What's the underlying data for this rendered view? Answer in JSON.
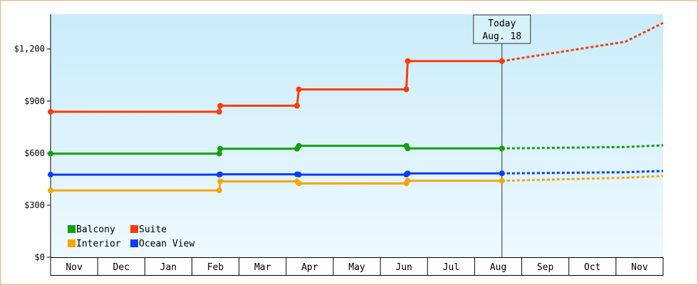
{
  "chart_data": {
    "type": "line",
    "title": "",
    "xlabel": "",
    "ylabel": "",
    "ylim": [
      0,
      1400
    ],
    "y_ticks": [
      "$0",
      "$300",
      "$600",
      "$900",
      "$1,200"
    ],
    "y_tick_values": [
      0,
      300,
      600,
      900,
      1200
    ],
    "months": [
      "Nov",
      "Dec",
      "Jan",
      "Feb",
      "Mar",
      "Apr",
      "May",
      "Jun",
      "Jul",
      "Aug",
      "Sep",
      "Oct",
      "Nov"
    ],
    "x_domain": [
      0,
      13
    ],
    "today_marker": {
      "line1": "Today",
      "line2": "Aug. 18",
      "x": 9.58
    },
    "grid": false,
    "background": "light blue gradient",
    "legend_position": "bottom-left",
    "series": [
      {
        "name": "Balcony",
        "color": "#13a10e",
        "history": [
          [
            0.0,
            597
          ],
          [
            3.58,
            597
          ],
          [
            3.6,
            625
          ],
          [
            5.23,
            625
          ],
          [
            5.27,
            642
          ],
          [
            7.55,
            642
          ],
          [
            7.58,
            627
          ],
          [
            9.58,
            627
          ]
        ],
        "markers": [
          [
            0.0,
            597
          ],
          [
            3.58,
            597
          ],
          [
            3.6,
            625
          ],
          [
            5.23,
            625
          ],
          [
            5.27,
            642
          ],
          [
            7.55,
            642
          ],
          [
            7.58,
            627
          ],
          [
            9.58,
            627
          ]
        ],
        "forecast": [
          [
            9.58,
            627
          ],
          [
            12.2,
            635
          ],
          [
            13.0,
            645
          ]
        ]
      },
      {
        "name": "Suite",
        "color": "#ff3a0a",
        "history": [
          [
            0.0,
            838
          ],
          [
            3.58,
            838
          ],
          [
            3.6,
            873
          ],
          [
            5.23,
            873
          ],
          [
            5.27,
            967
          ],
          [
            7.55,
            967
          ],
          [
            7.58,
            1130
          ],
          [
            9.58,
            1130
          ]
        ],
        "markers": [
          [
            0.0,
            838
          ],
          [
            3.58,
            838
          ],
          [
            3.6,
            873
          ],
          [
            5.23,
            873
          ],
          [
            5.27,
            967
          ],
          [
            7.55,
            967
          ],
          [
            7.58,
            1130
          ],
          [
            9.58,
            1130
          ]
        ],
        "forecast": [
          [
            9.58,
            1130
          ],
          [
            12.2,
            1242
          ],
          [
            13.0,
            1350
          ]
        ]
      },
      {
        "name": "Interior",
        "color": "#f5a50a",
        "history": [
          [
            0.0,
            385
          ],
          [
            3.58,
            385
          ],
          [
            3.6,
            437
          ],
          [
            5.23,
            437
          ],
          [
            5.27,
            425
          ],
          [
            7.55,
            425
          ],
          [
            7.58,
            440
          ],
          [
            9.58,
            440
          ]
        ],
        "markers": [
          [
            0.0,
            385
          ],
          [
            3.58,
            385
          ],
          [
            3.6,
            437
          ],
          [
            5.23,
            437
          ],
          [
            5.27,
            425
          ],
          [
            7.55,
            425
          ],
          [
            7.58,
            440
          ],
          [
            9.58,
            440
          ]
        ],
        "forecast": [
          [
            9.58,
            440
          ],
          [
            12.2,
            458
          ],
          [
            13.0,
            468
          ]
        ]
      },
      {
        "name": "Ocean View",
        "color": "#0a3cff",
        "history": [
          [
            0.0,
            476
          ],
          [
            3.58,
            476
          ],
          [
            3.6,
            478
          ],
          [
            5.23,
            478
          ],
          [
            5.27,
            476
          ],
          [
            7.55,
            476
          ],
          [
            7.58,
            483
          ],
          [
            9.58,
            483
          ]
        ],
        "markers": [
          [
            0.0,
            476
          ],
          [
            3.58,
            476
          ],
          [
            3.6,
            478
          ],
          [
            5.23,
            478
          ],
          [
            5.27,
            476
          ],
          [
            7.55,
            476
          ],
          [
            7.58,
            483
          ],
          [
            9.58,
            483
          ]
        ],
        "forecast": [
          [
            9.58,
            483
          ],
          [
            12.2,
            490
          ],
          [
            13.0,
            497
          ]
        ]
      }
    ],
    "legend_order": [
      "Balcony",
      "Suite",
      "Interior",
      "Ocean View"
    ]
  }
}
